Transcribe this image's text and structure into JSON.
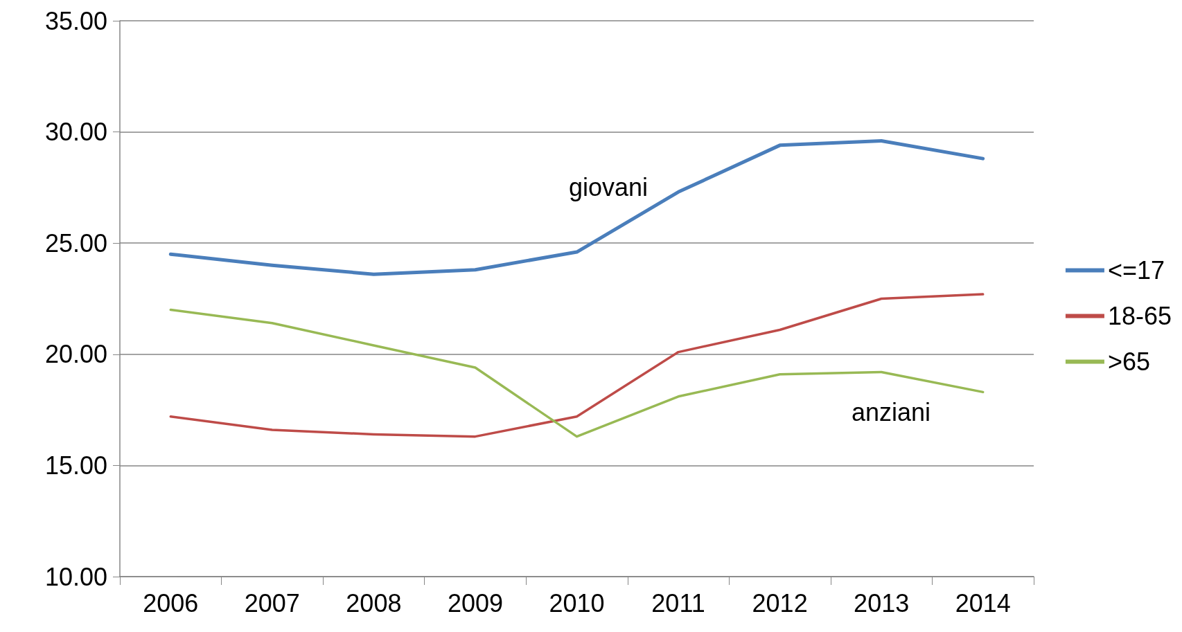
{
  "chart_data": {
    "type": "line",
    "categories": [
      "2006",
      "2007",
      "2008",
      "2009",
      "2010",
      "2011",
      "2012",
      "2013",
      "2014"
    ],
    "series": [
      {
        "name": "<=17",
        "color": "#4a7ebb",
        "values": [
          24.5,
          24.0,
          23.6,
          23.8,
          24.6,
          27.3,
          29.4,
          29.6,
          28.8
        ]
      },
      {
        "name": "18-65",
        "color": "#be4b48",
        "values": [
          17.2,
          16.6,
          16.4,
          16.3,
          17.2,
          20.1,
          21.1,
          22.5,
          22.7
        ]
      },
      {
        "name": ">65",
        "color": "#98b954",
        "values": [
          22.0,
          21.4,
          20.4,
          19.4,
          16.3,
          18.1,
          19.1,
          19.2,
          18.3
        ]
      }
    ],
    "ylim": [
      10,
      35
    ],
    "yticks": [
      {
        "value": 10,
        "label": "10.00"
      },
      {
        "value": 15,
        "label": "15.00"
      },
      {
        "value": 20,
        "label": "20.00"
      },
      {
        "value": 25,
        "label": "25.00"
      },
      {
        "value": 30,
        "label": "30.00"
      },
      {
        "value": 35,
        "label": "35.00"
      }
    ],
    "annotations": [
      "giovani",
      "anziani"
    ],
    "grid": "y",
    "legend": "right",
    "marker": "none",
    "line_style": "solid"
  }
}
